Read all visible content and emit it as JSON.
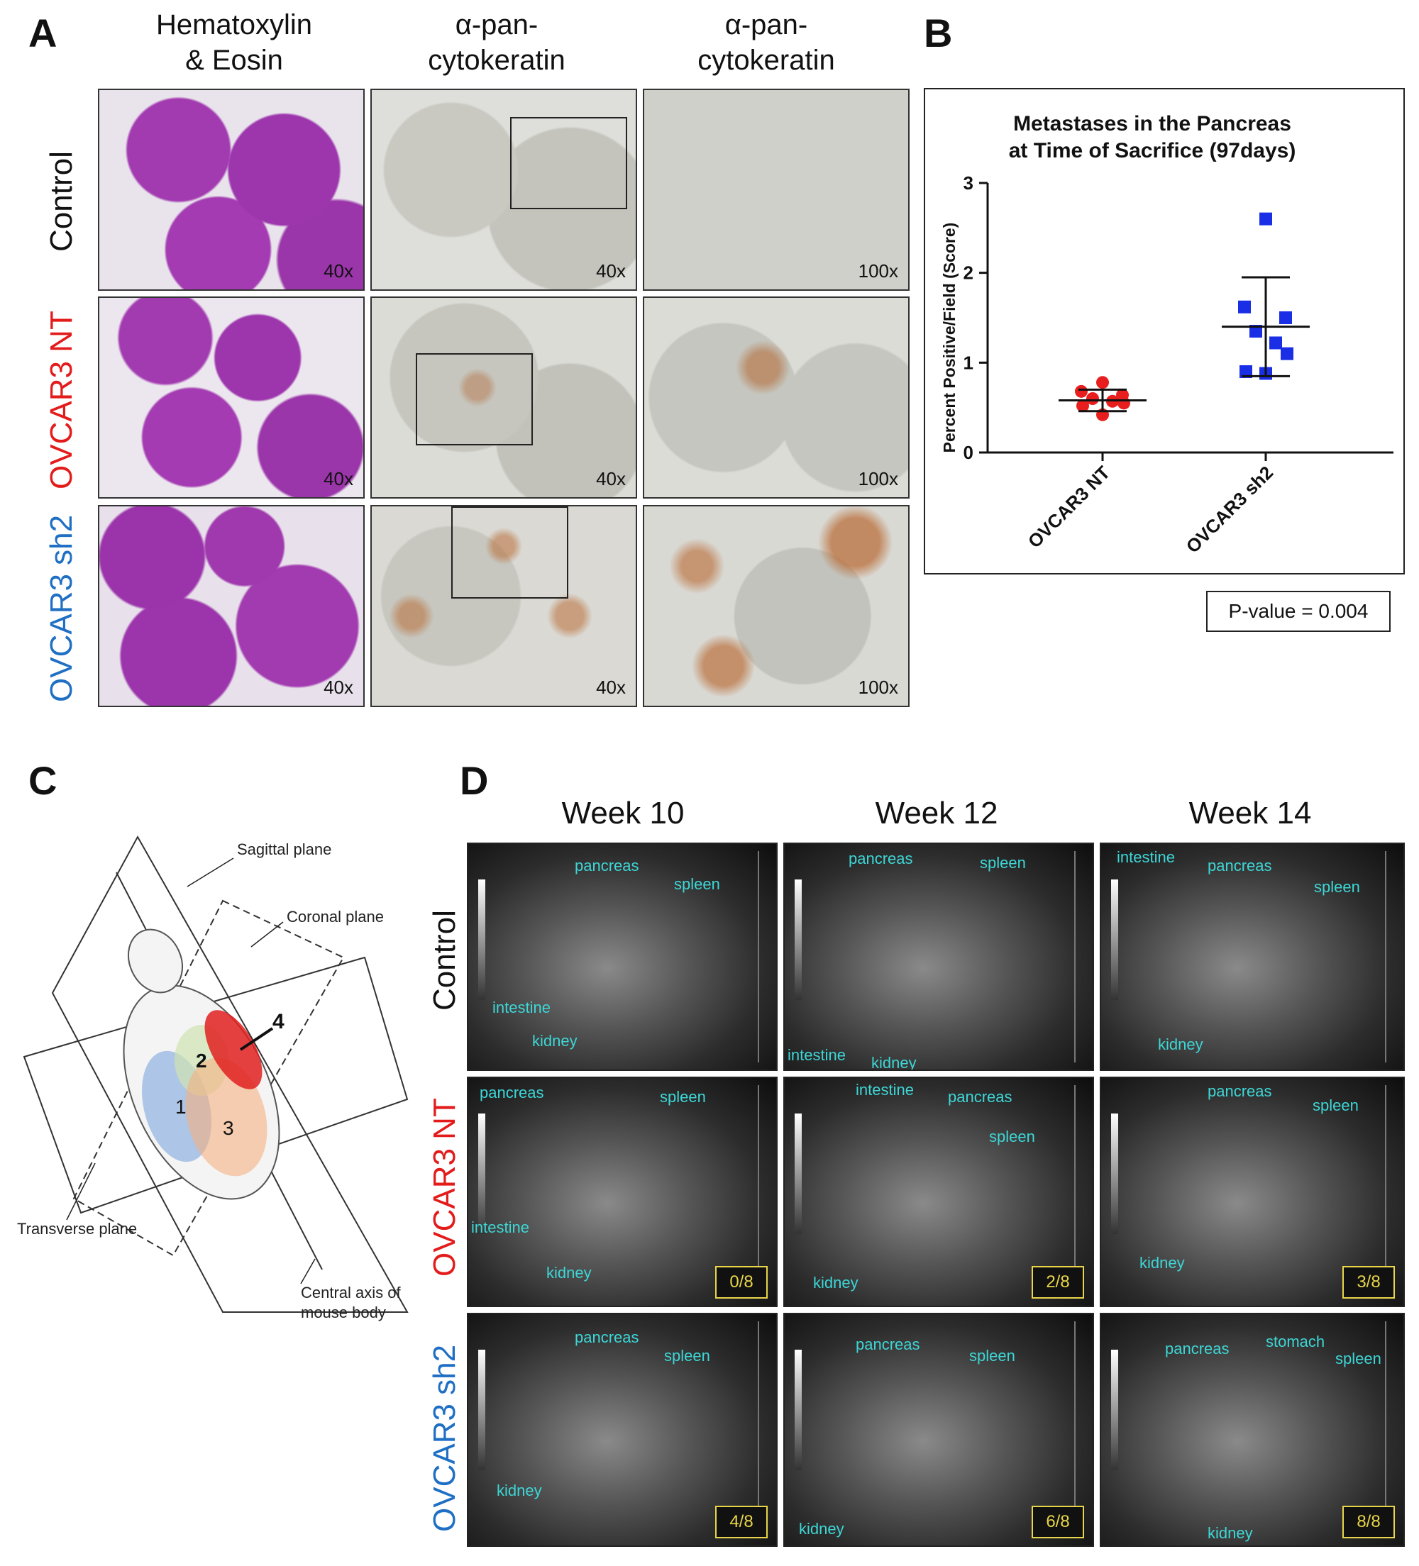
{
  "panels": {
    "a": "A",
    "b": "B",
    "c": "C",
    "d": "D"
  },
  "panel_a": {
    "col_headers": [
      "Hematoxylin\n& Eosin",
      "α-pan-\ncytokeratin",
      "α-pan-\ncytokeratin"
    ],
    "row_labels": [
      {
        "text": "Control",
        "color": "#111111"
      },
      {
        "text": "OVCAR3 NT",
        "color": "#e31b1b"
      },
      {
        "text": "OVCAR3 sh2",
        "color": "#1f6fc4"
      }
    ],
    "magnifications": [
      [
        "40x",
        "40x",
        "100x"
      ],
      [
        "40x",
        "40x",
        "100x"
      ],
      [
        "40x",
        "40x",
        "100x"
      ]
    ]
  },
  "panel_b": {
    "pvalue": "P-value = 0.004"
  },
  "chart_data": {
    "type": "scatter",
    "title": "Metastases in the Pancreas\nat Time of Sacrifice (97days)",
    "ylabel": "Percent Positive/Field (Score)",
    "xlabel": "",
    "ylim": [
      0,
      3
    ],
    "yticks": [
      0,
      1,
      2,
      3
    ],
    "categories": [
      "OVCAR3 NT",
      "OVCAR3 sh2"
    ],
    "series": [
      {
        "color": "#e81e1e",
        "marker": "circle",
        "values": [
          0.78,
          0.68,
          0.64,
          0.6,
          0.57,
          0.55,
          0.52,
          0.42
        ],
        "mean": 0.58,
        "sd_upper": 0.7,
        "sd_lower": 0.46
      },
      {
        "color": "#1a2ee6",
        "marker": "square",
        "values": [
          2.6,
          1.62,
          1.5,
          1.35,
          1.22,
          1.1,
          0.9,
          0.88
        ],
        "mean": 1.4,
        "sd_upper": 1.95,
        "sd_lower": 0.85
      }
    ],
    "grid": false
  },
  "panel_c": {
    "labels": {
      "sagittal": "Sagittal plane",
      "coronal": "Coronal plane",
      "transverse": "Transverse plane",
      "central": "Central axis of\nmouse body"
    },
    "regions": [
      "1",
      "2",
      "3",
      "4"
    ]
  },
  "panel_d": {
    "weeks": [
      "Week 10",
      "Week 12",
      "Week 14"
    ],
    "row_labels": [
      {
        "text": "Control",
        "color": "#111111"
      },
      {
        "text": "OVCAR3 NT",
        "color": "#e31b1b"
      },
      {
        "text": "OVCAR3 sh2",
        "color": "#1f6fc4"
      }
    ],
    "fractions": [
      [
        "",
        "",
        ""
      ],
      [
        "0/8",
        "2/8",
        "3/8"
      ],
      [
        "4/8",
        "6/8",
        "8/8"
      ]
    ],
    "organ_labels": {
      "pancreas": "pancreas",
      "spleen": "spleen",
      "intestine": "intestine",
      "kidney": "kidney",
      "stomach": "stomach"
    }
  }
}
